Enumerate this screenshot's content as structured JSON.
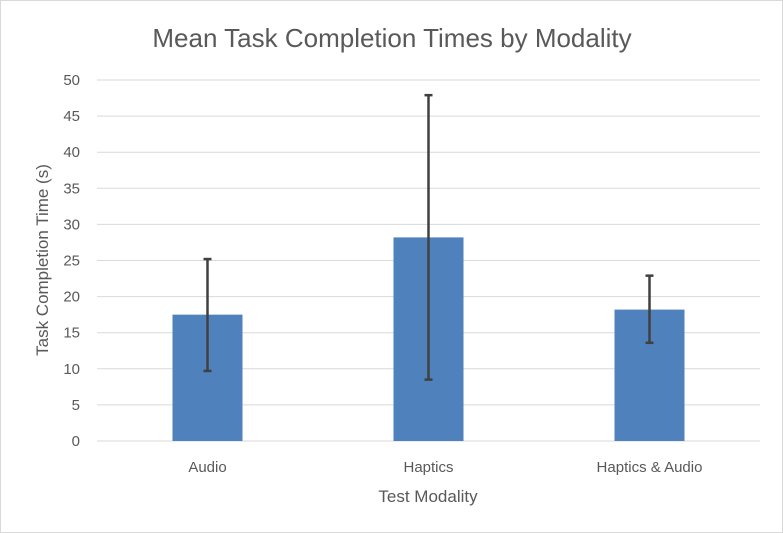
{
  "chart_data": {
    "type": "bar",
    "title": "Mean Task Completion Times by Modality",
    "xlabel": "Test Modality",
    "ylabel": "Task Completion Time (s)",
    "categories": [
      "Audio",
      "Haptics",
      "Haptics & Audio"
    ],
    "values": [
      17.5,
      28.2,
      18.2
    ],
    "error_low": [
      9.7,
      8.5,
      13.6
    ],
    "error_high": [
      25.2,
      47.9,
      22.9
    ],
    "ylim": [
      0,
      50
    ],
    "yticks": [
      0,
      5,
      10,
      15,
      20,
      25,
      30,
      35,
      40,
      45,
      50
    ],
    "ytick_labels": [
      "0",
      "5",
      "10",
      "15",
      "20",
      "25",
      "30",
      "35",
      "40",
      "45",
      "50"
    ],
    "grid": true,
    "legend": "none",
    "bar_color": "#4f81bd",
    "error_bar_color": "#404040",
    "grid_color": "#d9d9d9",
    "text_color": "#595959"
  }
}
